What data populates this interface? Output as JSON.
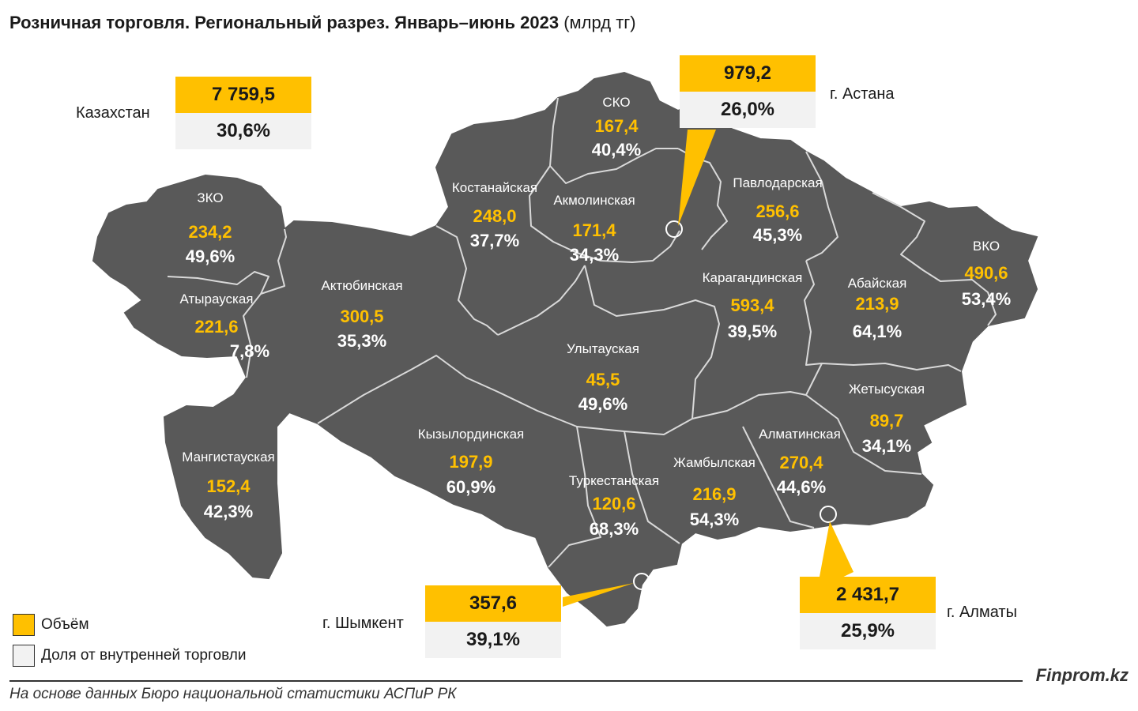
{
  "title": {
    "main": "Розничная торговля. Региональный разрез. Январь–июнь 2023",
    "unit": "(млрд тг)"
  },
  "colors": {
    "map_fill": "#595959",
    "volume": "#ffc000",
    "share_box": "#f2f2f2",
    "share_text_on_map": "#ffffff"
  },
  "regions": [
    {
      "name": "СКО",
      "volume": "167,4",
      "share": "40,4%"
    },
    {
      "name": "Костанайская",
      "volume": "248,0",
      "share": "37,7%"
    },
    {
      "name": "Акмолинская",
      "volume": "171,4",
      "share": "34,3%"
    },
    {
      "name": "Павлодарская",
      "volume": "256,6",
      "share": "45,3%"
    },
    {
      "name": "ЗКО",
      "volume": "234,2",
      "share": "49,6%"
    },
    {
      "name": "Атырауская",
      "volume": "221,6",
      "share": "7,8%"
    },
    {
      "name": "Актюбинская",
      "volume": "300,5",
      "share": "35,3%"
    },
    {
      "name": "Карагандинская",
      "volume": "593,4",
      "share": "39,5%"
    },
    {
      "name": "Абайская",
      "volume": "213,9",
      "share": "64,1%"
    },
    {
      "name": "ВКО",
      "volume": "490,6",
      "share": "53,4%"
    },
    {
      "name": "Улытауская",
      "volume": "45,5",
      "share": "49,6%"
    },
    {
      "name": "Жетысуская",
      "volume": "89,7",
      "share": "34,1%"
    },
    {
      "name": "Алматинская",
      "volume": "270,4",
      "share": "44,6%"
    },
    {
      "name": "Кызылординская",
      "volume": "197,9",
      "share": "60,9%"
    },
    {
      "name": "Жамбылская",
      "volume": "216,9",
      "share": "54,3%"
    },
    {
      "name": "Туркестанская",
      "volume": "120,6",
      "share": "68,3%"
    },
    {
      "name": "Мангистауская",
      "volume": "152,4",
      "share": "42,3%"
    }
  ],
  "callouts": {
    "kazakhstan": {
      "label": "Казахстан",
      "volume": "7 759,5",
      "share": "30,6%"
    },
    "astana": {
      "label": "г. Астана",
      "volume": "979,2",
      "share": "26,0%"
    },
    "shymkent": {
      "label": "г. Шымкент",
      "volume": "357,6",
      "share": "39,1%"
    },
    "almaty": {
      "label": "г. Алматы",
      "volume": "2 431,7",
      "share": "25,9%"
    }
  },
  "legend": {
    "volume_label": "Объём",
    "share_label": "Доля от внутренней торговли"
  },
  "footer": {
    "brand": "Finprom.kz",
    "source": "На основе данных Бюро национальной статистики АСПиР РК"
  }
}
